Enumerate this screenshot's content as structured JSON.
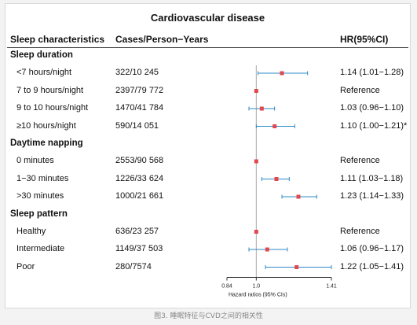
{
  "title": "Cardiovascular disease",
  "headers": {
    "sleep": "Sleep characteristics",
    "cases": "Cases/Person−Years",
    "hr": "HR(95%CI)"
  },
  "caption": "图3. 睡眠特征与CVD之间的相关性",
  "colors": {
    "point": "#e2474d",
    "ci_line": "#2e8bc8",
    "reference_line": "#aaaaaa"
  },
  "chart_data": {
    "type": "scatter",
    "title": "Cardiovascular disease",
    "xlabel": "Hazard ratios (95% CIs)",
    "x_ticks": [
      "0.84",
      "1.0",
      "1.41"
    ],
    "x_tick_values": [
      0.84,
      1.0,
      1.41
    ],
    "xlim": [
      0.84,
      1.41
    ],
    "reference_value": 1.0,
    "groups": [
      {
        "name": "Sleep duration",
        "rows": [
          {
            "label": "<7 hours/night",
            "cases": "322/10 245",
            "hr_text": "1.14 (1.01−1.28)",
            "hr": 1.14,
            "lo": 1.01,
            "hi": 1.28
          },
          {
            "label": "7 to 9 hours/night",
            "cases": "2397/79 772",
            "hr_text": "Reference",
            "hr": 1.0,
            "lo": null,
            "hi": null
          },
          {
            "label": "9 to 10 hours/night",
            "cases": "1470/41 784",
            "hr_text": "1.03 (0.96−1.10)",
            "hr": 1.03,
            "lo": 0.96,
            "hi": 1.1
          },
          {
            "label": "≥10 hours/night",
            "cases": "590/14 051",
            "hr_text": "1.10 (1.00−1.21)*",
            "hr": 1.1,
            "lo": 1.0,
            "hi": 1.21
          }
        ]
      },
      {
        "name": "Daytime napping",
        "rows": [
          {
            "label": "0 minutes",
            "cases": "2553/90 568",
            "hr_text": "Reference",
            "hr": 1.0,
            "lo": null,
            "hi": null
          },
          {
            "label": "1−30 minutes",
            "cases": "1226/33 624",
            "hr_text": "1.11 (1.03−1.18)",
            "hr": 1.11,
            "lo": 1.03,
            "hi": 1.18
          },
          {
            "label": ">30 minutes",
            "cases": "1000/21 661",
            "hr_text": "1.23 (1.14−1.33)",
            "hr": 1.23,
            "lo": 1.14,
            "hi": 1.33
          }
        ]
      },
      {
        "name": "Sleep pattern",
        "rows": [
          {
            "label": "Healthy",
            "cases": "636/23 257",
            "hr_text": "Reference",
            "hr": 1.0,
            "lo": null,
            "hi": null
          },
          {
            "label": "Intermediate",
            "cases": "1149/37 503",
            "hr_text": "1.06 (0.96−1.17)",
            "hr": 1.06,
            "lo": 0.96,
            "hi": 1.17
          },
          {
            "label": "Poor",
            "cases": "280/7574",
            "hr_text": "1.22 (1.05−1.41)",
            "hr": 1.22,
            "lo": 1.05,
            "hi": 1.41
          }
        ]
      }
    ]
  }
}
